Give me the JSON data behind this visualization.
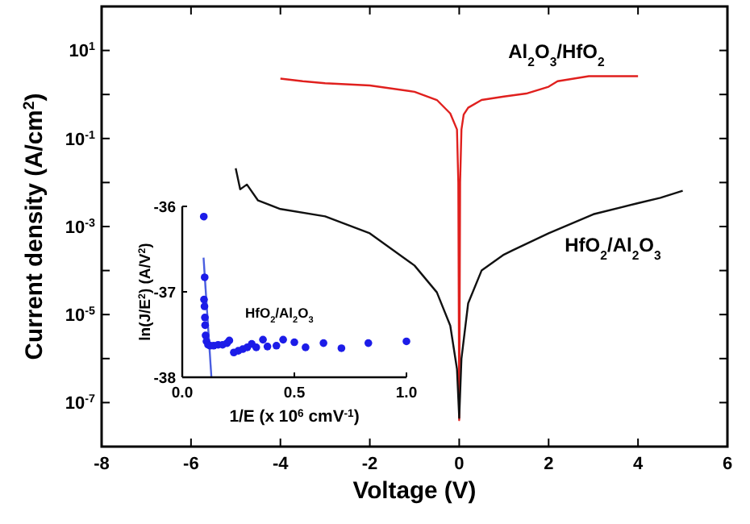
{
  "chart_data": [
    {
      "type": "line",
      "xlabel": "Voltage (V)",
      "ylabel": "Current density (A/cm$^{2}$)",
      "log": "y",
      "grid": false,
      "xlim": [
        -8,
        6
      ],
      "xticks": [
        -8,
        -6,
        -4,
        -2,
        0,
        2,
        4,
        6
      ],
      "ylim": [
        1e-08,
        100
      ],
      "yticks": [
        {
          "value": 10,
          "label": "10$^{1}$"
        },
        {
          "value": 1,
          "label": null
        },
        {
          "value": 0.1,
          "label": "10$^{-1}$"
        },
        {
          "value": 0.01,
          "label": null
        },
        {
          "value": 0.001,
          "label": "10$^{-3}$"
        },
        {
          "value": 0.0001,
          "label": null
        },
        {
          "value": 1e-05,
          "label": "10$^{-5}$"
        },
        {
          "value": 1e-06,
          "label": null
        },
        {
          "value": 1e-07,
          "label": "10$^{-7}$"
        }
      ],
      "series": [
        {
          "name": "Al$_{2}$O$_{3}$/HfO$_{2}$",
          "color": "#e0201e",
          "x": [
            -4,
            -3.5,
            -3,
            -2,
            -1,
            -0.5,
            -0.2,
            -0.05,
            -0.02,
            0,
            0.02,
            0.05,
            0.1,
            0.2,
            0.5,
            1,
            1.5,
            2,
            2.2,
            2.9,
            4
          ],
          "values": [
            2.3,
            2.0,
            1.8,
            1.6,
            1.15,
            0.75,
            0.37,
            0.16,
            0.01,
            4e-08,
            0.01,
            0.16,
            0.35,
            0.5,
            0.75,
            0.9,
            1.05,
            1.5,
            2.0,
            2.6,
            2.6
          ]
        },
        {
          "name": "HfO$_{2}$/Al$_{2}$O$_{3}$",
          "color": "#111111",
          "x": [
            -5,
            -4.9,
            -4.75,
            -4.5,
            -4,
            -3,
            -2,
            -1,
            -0.5,
            -0.2,
            -0.05,
            0,
            0.05,
            0.2,
            0.5,
            1,
            1.2,
            2,
            3,
            4,
            4.5,
            5
          ],
          "values": [
            0.021,
            0.007,
            0.009,
            0.0039,
            0.0025,
            0.0017,
            0.0007,
            0.00013,
            3.2e-05,
            5.6e-06,
            5.8e-07,
            4.5e-08,
            1e-06,
            1.8e-05,
            0.0001,
            0.00023,
            0.00029,
            0.0007,
            0.0019,
            0.0034,
            0.0045,
            0.0065
          ]
        }
      ]
    },
    {
      "type": "scatter",
      "xlabel": "1/E (x 10$^{6}$ cmV$^{-1}$)",
      "ylabel": "ln(J/E$^{2}$) (A/V$^{2}$)",
      "grid": false,
      "xlim": [
        0,
        1
      ],
      "xticks": [
        {
          "value": 0,
          "label": "0.0"
        },
        0.5,
        {
          "value": 1,
          "label": "1.0"
        }
      ],
      "ylim": [
        -38,
        -36
      ],
      "yticks": [
        -36,
        -37,
        -38
      ],
      "series": [
        {
          "name": "HfO$_{2}$/Al$_{2}$O$_{3}$",
          "color": "#1c1ce8",
          "x": [
            0.096,
            0.1,
            0.097,
            0.099,
            0.101,
            0.102,
            0.104,
            0.108,
            0.115,
            0.125,
            0.14,
            0.16,
            0.18,
            0.2,
            0.21,
            0.23,
            0.25,
            0.27,
            0.29,
            0.31,
            0.33,
            0.36,
            0.38,
            0.42,
            0.45,
            0.5,
            0.55,
            0.63,
            0.71,
            0.83,
            1.0
          ],
          "values": [
            -36.12,
            -36.83,
            -37.09,
            -37.17,
            -37.3,
            -37.39,
            -37.51,
            -37.58,
            -37.62,
            -37.63,
            -37.63,
            -37.62,
            -37.62,
            -37.6,
            -37.57,
            -37.71,
            -37.69,
            -37.67,
            -37.65,
            -37.61,
            -37.65,
            -37.56,
            -37.64,
            -37.63,
            -37.56,
            -37.59,
            -37.65,
            -37.6,
            -37.66,
            -37.6,
            -37.58
          ]
        },
        {
          "type": "line",
          "color": "#4a5ee0",
          "x": [
            0.095,
            0.13
          ],
          "values": [
            -36.6,
            -38
          ]
        }
      ]
    }
  ]
}
